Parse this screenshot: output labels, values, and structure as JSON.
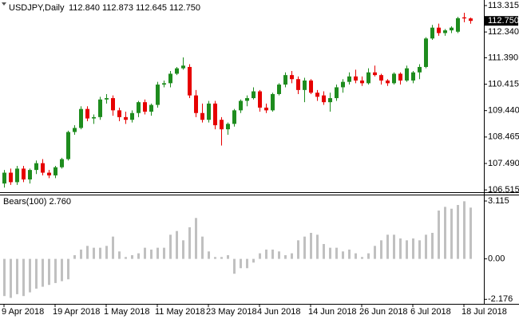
{
  "chart_data": [
    {
      "type": "candlestick",
      "title": "USDJPY,Daily",
      "info": "112.840 112.873 112.645 112.750",
      "categories": [
        "9 Apr 2018",
        null,
        null,
        null,
        null,
        null,
        null,
        null,
        "19 Apr 2018",
        null,
        null,
        null,
        null,
        null,
        null,
        null,
        "1 May 2018",
        null,
        null,
        null,
        null,
        null,
        null,
        null,
        "11 May 2018",
        null,
        null,
        null,
        null,
        null,
        null,
        null,
        "23 May 2018",
        null,
        null,
        null,
        null,
        null,
        null,
        null,
        "4 Jun 2018",
        null,
        null,
        null,
        null,
        null,
        null,
        null,
        "14 Jun 2018",
        null,
        null,
        null,
        null,
        null,
        null,
        null,
        "26 Jun 2018",
        null,
        null,
        null,
        null,
        null,
        null,
        null,
        "6 Jul 2018",
        null,
        null,
        null,
        null,
        null,
        null,
        null,
        "18 Jul 2018",
        null
      ],
      "open": [
        106.75,
        107.15,
        106.8,
        107.3,
        106.9,
        107.25,
        107.5,
        107.15,
        107.05,
        107.35,
        107.65,
        108.65,
        108.8,
        109.5,
        109.15,
        109.2,
        109.85,
        109.9,
        109.45,
        109.2,
        109.1,
        109.35,
        109.75,
        109.4,
        109.65,
        110.4,
        110.45,
        110.8,
        111.0,
        111.05,
        110.0,
        109.35,
        109.1,
        109.7,
        109.1,
        108.75,
        108.95,
        109.45,
        109.8,
        109.9,
        110.15,
        109.55,
        109.45,
        110.05,
        110.4,
        110.75,
        110.6,
        110.2,
        110.55,
        110.1,
        110.0,
        109.75,
        109.9,
        110.3,
        110.5,
        110.7,
        110.55,
        110.45,
        110.85,
        110.75,
        110.55,
        110.45,
        110.8,
        110.55,
        110.55,
        110.85,
        111.05,
        112.1,
        112.5,
        112.3,
        112.4,
        112.35,
        112.88,
        112.84
      ],
      "high": [
        107.25,
        107.3,
        107.4,
        107.4,
        107.3,
        107.6,
        107.65,
        107.25,
        107.4,
        107.7,
        108.7,
        108.9,
        109.6,
        109.6,
        109.3,
        109.95,
        110.05,
        110.0,
        109.55,
        109.4,
        109.45,
        109.8,
        109.85,
        109.7,
        110.5,
        110.55,
        110.9,
        111.05,
        111.4,
        111.15,
        110.2,
        109.7,
        109.8,
        109.8,
        109.2,
        109.0,
        109.5,
        109.85,
        110.0,
        110.3,
        110.2,
        109.7,
        110.1,
        110.45,
        110.85,
        110.9,
        110.7,
        110.65,
        110.6,
        110.2,
        110.15,
        110.1,
        110.4,
        110.6,
        110.85,
        110.95,
        110.7,
        111.0,
        111.1,
        110.8,
        110.6,
        110.85,
        110.85,
        111.1,
        110.9,
        111.15,
        112.15,
        112.6,
        112.65,
        112.45,
        112.55,
        112.9,
        113.05,
        112.873
      ],
      "low": [
        106.6,
        106.7,
        106.7,
        106.8,
        106.75,
        107.1,
        107.05,
        106.95,
        106.95,
        107.3,
        107.6,
        108.55,
        108.75,
        109.05,
        108.95,
        109.1,
        109.7,
        109.25,
        109.05,
        108.95,
        109.0,
        109.2,
        109.3,
        109.25,
        109.55,
        110.3,
        110.3,
        110.75,
        110.95,
        109.9,
        109.2,
        109.0,
        109.0,
        108.75,
        108.15,
        108.55,
        108.85,
        109.35,
        109.6,
        109.85,
        109.4,
        109.35,
        109.4,
        110.0,
        110.3,
        110.45,
        110.05,
        109.75,
        110.05,
        109.8,
        109.65,
        109.4,
        109.8,
        110.1,
        110.4,
        110.45,
        110.35,
        110.4,
        110.7,
        110.4,
        110.35,
        110.4,
        110.4,
        110.5,
        110.45,
        110.6,
        111.0,
        112.05,
        112.2,
        112.2,
        112.3,
        112.3,
        112.7,
        112.645
      ],
      "close": [
        107.15,
        106.8,
        107.3,
        106.9,
        107.25,
        107.5,
        107.15,
        107.05,
        107.35,
        107.65,
        108.65,
        108.8,
        109.5,
        109.15,
        109.2,
        109.85,
        109.9,
        109.45,
        109.2,
        109.1,
        109.35,
        109.75,
        109.4,
        109.65,
        110.4,
        110.45,
        110.8,
        111.0,
        111.1,
        110.0,
        109.35,
        109.1,
        109.7,
        108.9,
        108.75,
        108.95,
        109.45,
        109.8,
        109.9,
        110.15,
        109.55,
        109.45,
        110.05,
        110.4,
        110.75,
        110.6,
        110.2,
        110.55,
        110.1,
        109.95,
        109.75,
        109.9,
        110.3,
        110.5,
        110.7,
        110.55,
        110.45,
        110.85,
        110.75,
        110.55,
        110.45,
        110.8,
        110.55,
        111.0,
        110.85,
        111.05,
        112.1,
        112.5,
        112.3,
        112.4,
        112.5,
        112.85,
        112.84,
        112.75
      ],
      "up_color": "#1e8c1e",
      "down_color": "#e60000",
      "ylim": [
        106.43,
        113.52
      ],
      "yticks": [
        113.315,
        {
          "value": 112.34,
          "label": "112.340"
        },
        {
          "value": 111.39,
          "label": "111.390"
        },
        110.415,
        {
          "value": 109.44,
          "label": "109.440"
        },
        108.465,
        {
          "value": 107.49,
          "label": "107.490"
        },
        106.515
      ],
      "current_price": {
        "value": 112.75,
        "label": "112.750"
      }
    },
    {
      "type": "bar",
      "title": "Bears(100) 2.760",
      "values": [
        -2.0,
        -2.1,
        -1.9,
        -2.0,
        -1.8,
        -1.6,
        -1.5,
        -1.4,
        -1.3,
        -1.2,
        -1.1,
        0.2,
        0.5,
        0.7,
        0.6,
        0.6,
        0.7,
        1.2,
        0.4,
        0.1,
        0.2,
        0.3,
        0.6,
        0.5,
        0.6,
        0.6,
        1.3,
        1.5,
        1.0,
        1.7,
        2.2,
        1.2,
        0.4,
        0.1,
        0.1,
        0.2,
        -0.8,
        -0.5,
        -0.5,
        -0.2,
        0.3,
        0.5,
        0.5,
        0.4,
        0.2,
        0.3,
        1.0,
        1.2,
        1.4,
        1.3,
        0.8,
        0.6,
        0.6,
        0.4,
        0.5,
        0.3,
        0.1,
        0.3,
        0.7,
        1.0,
        1.3,
        1.3,
        1.1,
        1.0,
        1.1,
        1.0,
        1.3,
        1.4,
        2.6,
        2.8,
        2.7,
        2.9,
        3.1,
        2.76
      ],
      "color": "#c0c0c0",
      "ylim": [
        -2.42,
        3.46
      ],
      "yticks": [
        3.115,
        {
          "value": 0,
          "label": "0.00"
        },
        -2.176
      ]
    }
  ]
}
